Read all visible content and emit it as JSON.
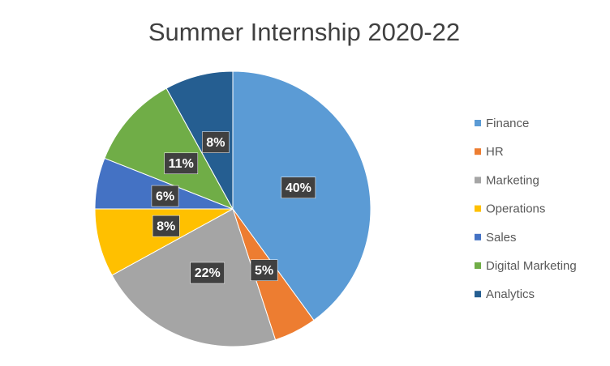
{
  "chart_data": {
    "type": "pie",
    "title": "Summer Internship 2020-22",
    "categories": [
      "Finance",
      "HR",
      "Marketing",
      "Operations",
      "Sales",
      "Digital Marketing",
      "Analytics"
    ],
    "values": [
      40,
      5,
      22,
      8,
      6,
      11,
      8
    ],
    "value_labels": [
      "40%",
      "5%",
      "22%",
      "8%",
      "6%",
      "11%",
      "8%"
    ],
    "colors": [
      "#5b9bd5",
      "#ed7d31",
      "#a5a5a5",
      "#ffc000",
      "#4472c4",
      "#70ad47",
      "#255e91"
    ],
    "legend": "right"
  }
}
